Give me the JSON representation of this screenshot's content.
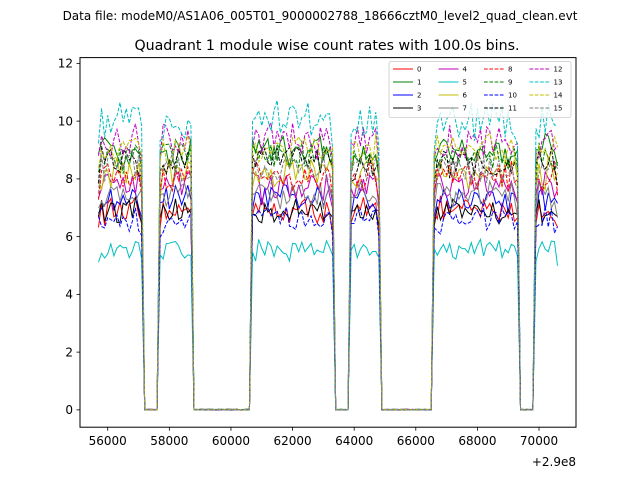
{
  "chart_data": {
    "type": "line",
    "suptitle": "Data file: modeM0/AS1A06_005T01_9000002788_18666cztM0_level2_quad_clean.evt",
    "title": "Quadrant 1 module wise count rates with 100.0s bins.",
    "xlabel": "",
    "ylabel": "",
    "x_offset_label": "+2.9e8",
    "xlim": [
      55100,
      71200
    ],
    "ylim": [
      -0.6,
      12.2
    ],
    "xticks": [
      56000,
      58000,
      60000,
      62000,
      64000,
      66000,
      68000,
      70000
    ],
    "yticks": [
      0,
      2,
      4,
      6,
      8,
      10,
      12
    ],
    "x_range": [
      55700,
      70600
    ],
    "bin": 100,
    "on_intervals": [
      [
        55700,
        57100
      ],
      [
        57700,
        58750
      ],
      [
        60650,
        63300
      ],
      [
        63900,
        64800
      ],
      [
        66600,
        69300
      ],
      [
        69900,
        70600
      ]
    ],
    "legend": {
      "position": "top-right",
      "ncol": 4
    },
    "series": [
      {
        "name": "0",
        "color": "#ff0000",
        "style": "solid",
        "level": 6.9
      },
      {
        "name": "1",
        "color": "#008000",
        "style": "solid",
        "level": 9.0
      },
      {
        "name": "2",
        "color": "#0000ff",
        "style": "solid",
        "level": 7.3
      },
      {
        "name": "3",
        "color": "#000000",
        "style": "solid",
        "level": 6.9
      },
      {
        "name": "4",
        "color": "#bf00bf",
        "style": "solid",
        "level": 7.7
      },
      {
        "name": "5",
        "color": "#00bfbf",
        "style": "solid",
        "level": 5.6
      },
      {
        "name": "6",
        "color": "#bfbf00",
        "style": "solid",
        "level": 8.2
      },
      {
        "name": "7",
        "color": "#808080",
        "style": "solid",
        "level": 7.5
      },
      {
        "name": "8",
        "color": "#ff0000",
        "style": "dashed",
        "level": 8.1
      },
      {
        "name": "9",
        "color": "#008000",
        "style": "dashed",
        "level": 8.8
      },
      {
        "name": "10",
        "color": "#0000ff",
        "style": "dashed",
        "level": 6.6
      },
      {
        "name": "11",
        "color": "#000000",
        "style": "dashed",
        "level": 8.6
      },
      {
        "name": "12",
        "color": "#bf00bf",
        "style": "dashed",
        "level": 9.3
      },
      {
        "name": "13",
        "color": "#00bfbf",
        "style": "dashed",
        "level": 10.0
      },
      {
        "name": "14",
        "color": "#bfbf00",
        "style": "dashed",
        "level": 9.0
      },
      {
        "name": "15",
        "color": "#808080",
        "style": "dashed",
        "level": 8.4
      }
    ]
  }
}
